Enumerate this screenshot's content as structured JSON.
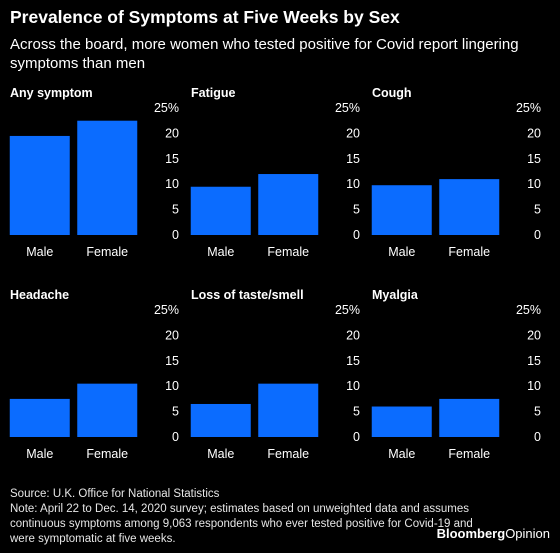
{
  "title": "Prevalence of Symptoms at Five Weeks by Sex",
  "subtitle": "Across the board, more women who tested positive for Covid report lingering symptoms than men",
  "colors": {
    "bar": "#0b6cff",
    "background": "#000000",
    "text": "#ffffff"
  },
  "chart_data": [
    {
      "type": "bar",
      "title": "Any symptom",
      "categories": [
        "Male",
        "Female"
      ],
      "values": [
        19.5,
        22.5
      ],
      "ylim": [
        0,
        25
      ],
      "yticks": [
        "25%",
        "20",
        "15",
        "10",
        "5",
        "0"
      ]
    },
    {
      "type": "bar",
      "title": "Fatigue",
      "categories": [
        "Male",
        "Female"
      ],
      "values": [
        9.5,
        12
      ],
      "ylim": [
        0,
        25
      ],
      "yticks": [
        "25%",
        "20",
        "15",
        "10",
        "5",
        "0"
      ]
    },
    {
      "type": "bar",
      "title": "Cough",
      "categories": [
        "Male",
        "Female"
      ],
      "values": [
        9.8,
        11
      ],
      "ylim": [
        0,
        25
      ],
      "yticks": [
        "25%",
        "20",
        "15",
        "10",
        "5",
        "0"
      ]
    },
    {
      "type": "bar",
      "title": "Headache",
      "categories": [
        "Male",
        "Female"
      ],
      "values": [
        7.5,
        10.5
      ],
      "ylim": [
        0,
        25
      ],
      "yticks": [
        "25%",
        "20",
        "15",
        "10",
        "5",
        "0"
      ]
    },
    {
      "type": "bar",
      "title": "Loss of taste/smell",
      "categories": [
        "Male",
        "Female"
      ],
      "values": [
        6.5,
        10.5
      ],
      "ylim": [
        0,
        25
      ],
      "yticks": [
        "25%",
        "20",
        "15",
        "10",
        "5",
        "0"
      ]
    },
    {
      "type": "bar",
      "title": "Myalgia",
      "categories": [
        "Male",
        "Female"
      ],
      "values": [
        6,
        7.5
      ],
      "ylim": [
        0,
        25
      ],
      "yticks": [
        "25%",
        "20",
        "15",
        "10",
        "5",
        "0"
      ]
    }
  ],
  "footer": {
    "source": "Source: U.K. Office for National Statistics",
    "note": "Note: April 22 to Dec. 14, 2020 survey; estimates based on unweighted data and assumes continuous symptoms among 9,063 respondents who ever tested positive for Covid-19 and were symptomatic at five weeks."
  },
  "brand": {
    "part1": "Bloomberg",
    "part2": "Opinion"
  }
}
